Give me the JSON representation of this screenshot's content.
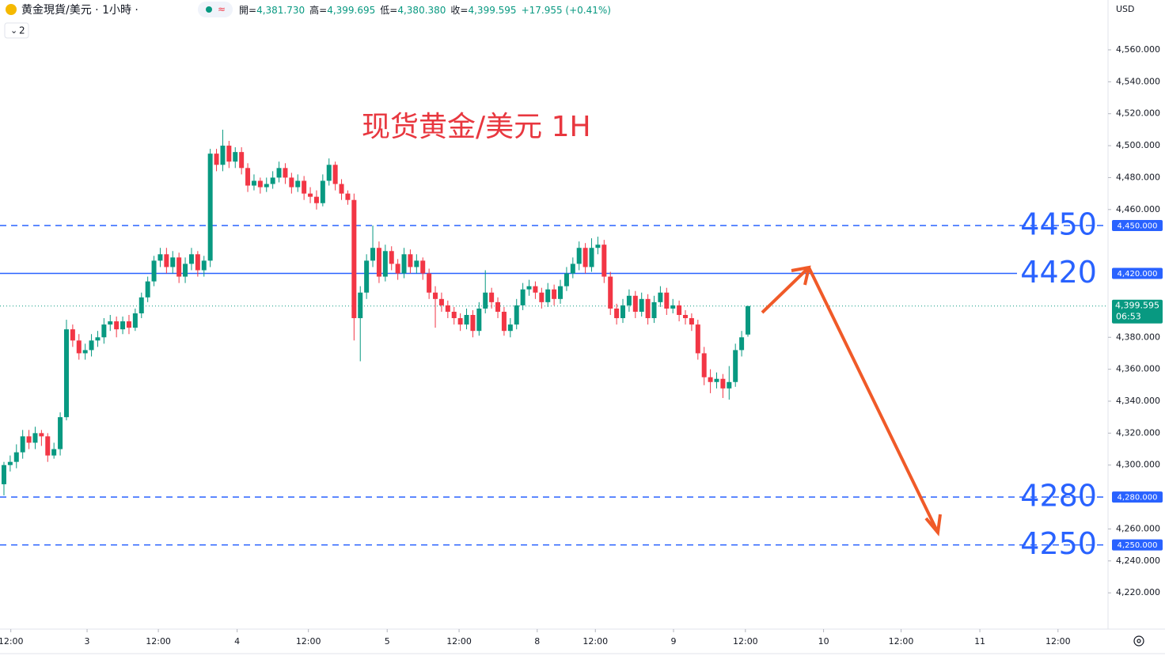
{
  "chart_data": {
    "type": "candlestick",
    "symbol": "黄金現貨/美元 · 1小時 ·",
    "indicator_count": 2,
    "currency": "USD",
    "title": "现货黄金/美元 1H",
    "legend_ohlc": [
      {
        "name": "開=",
        "value": 4381.73,
        "label": "4,381.730"
      },
      {
        "name": "高=",
        "value": 4399.695,
        "label": "4,399.695"
      },
      {
        "name": "低=",
        "value": 4380.38,
        "label": "4,380.380"
      },
      {
        "name": "收=",
        "value": 4399.595,
        "label": "4,399.595"
      }
    ],
    "change": "+17.955 (+0.41%)",
    "up_color": "#089981",
    "down_color": "#f23645",
    "level_color": "#2962ff",
    "ylim": [
      4197.3,
      4591.2
    ],
    "yticks": [
      {
        "value": 4560,
        "label": "4,560.000"
      },
      {
        "value": 4540,
        "label": "4,540.000"
      },
      {
        "value": 4520,
        "label": "4,520.000"
      },
      {
        "value": 4500,
        "label": "4,500.000"
      },
      {
        "value": 4480,
        "label": "4,480.000"
      },
      {
        "value": 4460,
        "label": "4,460.000"
      },
      {
        "value": 4380,
        "label": "4,380.000"
      },
      {
        "value": 4360,
        "label": "4,360.000"
      },
      {
        "value": 4340,
        "label": "4,340.000"
      },
      {
        "value": 4320,
        "label": "4,320.000"
      },
      {
        "value": 4300,
        "label": "4,300.000"
      },
      {
        "value": 4260,
        "label": "4,260.000"
      },
      {
        "value": 4240,
        "label": "4,240.000"
      },
      {
        "value": 4220,
        "label": "4,220.000"
      }
    ],
    "xlim": [
      -0.63,
      176.6
    ],
    "xticks": [
      {
        "value": 1.1,
        "label": "12:00"
      },
      {
        "value": 13.3,
        "label": "3"
      },
      {
        "value": 24.7,
        "label": "12:00"
      },
      {
        "value": 37.3,
        "label": "4"
      },
      {
        "value": 48.7,
        "label": "12:00"
      },
      {
        "value": 61.3,
        "label": "5"
      },
      {
        "value": 72.8,
        "label": "12:00"
      },
      {
        "value": 85.3,
        "label": "8"
      },
      {
        "value": 94.6,
        "label": "12:00"
      },
      {
        "value": 107.1,
        "label": "9"
      },
      {
        "value": 118.6,
        "label": "12:00"
      },
      {
        "value": 131.1,
        "label": "10"
      },
      {
        "value": 143.5,
        "label": "12:00"
      },
      {
        "value": 156.1,
        "label": "11"
      },
      {
        "value": 168.6,
        "label": "12:00"
      }
    ],
    "levels": [
      {
        "value": 4450,
        "badge": "4,450.000",
        "style": "dashed"
      },
      {
        "value": 4420,
        "badge": "4,420.000",
        "style": "solid"
      },
      {
        "value": 4280,
        "badge": "4,280.000",
        "style": "dashed"
      },
      {
        "value": 4250,
        "badge": "4,250.000",
        "style": "dashed"
      }
    ],
    "last_price": {
      "value": 4399.595,
      "label": "4,399.595",
      "countdown": "06:53"
    },
    "candles": [
      [
        4288,
        4302,
        4281,
        4300
      ],
      [
        4300,
        4306,
        4296,
        4302
      ],
      [
        4302,
        4313,
        4298,
        4308
      ],
      [
        4308,
        4322,
        4304,
        4318
      ],
      [
        4318,
        4322,
        4310,
        4314
      ],
      [
        4314,
        4324,
        4310,
        4320
      ],
      [
        4320,
        4322,
        4312,
        4318
      ],
      [
        4318,
        4320,
        4302,
        4306
      ],
      [
        4306,
        4314,
        4304,
        4310
      ],
      [
        4310,
        4333,
        4306,
        4330
      ],
      [
        4330,
        4391,
        4328,
        4385
      ],
      [
        4385,
        4388,
        4374,
        4378
      ],
      [
        4378,
        4382,
        4366,
        4370
      ],
      [
        4370,
        4376,
        4366,
        4372
      ],
      [
        4372,
        4382,
        4368,
        4378
      ],
      [
        4378,
        4384,
        4374,
        4380
      ],
      [
        4380,
        4392,
        4376,
        4388
      ],
      [
        4388,
        4394,
        4384,
        4390
      ],
      [
        4390,
        4393,
        4380,
        4385
      ],
      [
        4385,
        4393,
        4382,
        4390
      ],
      [
        4390,
        4394,
        4382,
        4386
      ],
      [
        4386,
        4398,
        4384,
        4395
      ],
      [
        4395,
        4408,
        4392,
        4405
      ],
      [
        4405,
        4418,
        4402,
        4415
      ],
      [
        4415,
        4431,
        4412,
        4428
      ],
      [
        4428,
        4436,
        4424,
        4432
      ],
      [
        4432,
        4436,
        4420,
        4424
      ],
      [
        4424,
        4434,
        4420,
        4430
      ],
      [
        4430,
        4433,
        4414,
        4418
      ],
      [
        4418,
        4430,
        4414,
        4426
      ],
      [
        4426,
        4436,
        4422,
        4432
      ],
      [
        4432,
        4434,
        4418,
        4422
      ],
      [
        4422,
        4431,
        4418,
        4428
      ],
      [
        4428,
        4498,
        4424,
        4495
      ],
      [
        4495,
        4498,
        4484,
        4488
      ],
      [
        4488,
        4510,
        4484,
        4500
      ],
      [
        4500,
        4503,
        4486,
        4490
      ],
      [
        4490,
        4499,
        4486,
        4496
      ],
      [
        4496,
        4499,
        4482,
        4486
      ],
      [
        4486,
        4489,
        4471,
        4475
      ],
      [
        4475,
        4482,
        4472,
        4478
      ],
      [
        4478,
        4480,
        4470,
        4474
      ],
      [
        4474,
        4480,
        4471,
        4476
      ],
      [
        4476,
        4484,
        4473,
        4480
      ],
      [
        4480,
        4490,
        4477,
        4486
      ],
      [
        4486,
        4489,
        4476,
        4480
      ],
      [
        4480,
        4483,
        4470,
        4474
      ],
      [
        4474,
        4482,
        4471,
        4478
      ],
      [
        4478,
        4481,
        4466,
        4470
      ],
      [
        4470,
        4474,
        4464,
        4468
      ],
      [
        4468,
        4472,
        4460,
        4464
      ],
      [
        4464,
        4482,
        4462,
        4478
      ],
      [
        4478,
        4492,
        4475,
        4488
      ],
      [
        4488,
        4490,
        4472,
        4476
      ],
      [
        4476,
        4479,
        4466,
        4470
      ],
      [
        4470,
        4472,
        4463,
        4466
      ],
      [
        4466,
        4470,
        4378,
        4392
      ],
      [
        4392,
        4412,
        4365,
        4408
      ],
      [
        4408,
        4432,
        4404,
        4428
      ],
      [
        4428,
        4450,
        4424,
        4436
      ],
      [
        4436,
        4440,
        4414,
        4418
      ],
      [
        4418,
        4438,
        4415,
        4434
      ],
      [
        4434,
        4437,
        4422,
        4426
      ],
      [
        4426,
        4429,
        4416,
        4420
      ],
      [
        4420,
        4436,
        4417,
        4432
      ],
      [
        4432,
        4435,
        4420,
        4424
      ],
      [
        4424,
        4432,
        4420,
        4428
      ],
      [
        4428,
        4430,
        4416,
        4420
      ],
      [
        4420,
        4423,
        4404,
        4408
      ],
      [
        4408,
        4412,
        4386,
        4404
      ],
      [
        4404,
        4408,
        4396,
        4400
      ],
      [
        4400,
        4403,
        4392,
        4396
      ],
      [
        4396,
        4399,
        4388,
        4392
      ],
      [
        4392,
        4395,
        4384,
        4388
      ],
      [
        4388,
        4398,
        4385,
        4394
      ],
      [
        4394,
        4397,
        4380,
        4384
      ],
      [
        4384,
        4402,
        4381,
        4398
      ],
      [
        4398,
        4422,
        4395,
        4408
      ],
      [
        4408,
        4411,
        4398,
        4402
      ],
      [
        4402,
        4405,
        4392,
        4396
      ],
      [
        4396,
        4399,
        4381,
        4384
      ],
      [
        4384,
        4392,
        4380,
        4388
      ],
      [
        4388,
        4404,
        4385,
        4400
      ],
      [
        4400,
        4414,
        4397,
        4410
      ],
      [
        4410,
        4416,
        4406,
        4412
      ],
      [
        4412,
        4415,
        4404,
        4408
      ],
      [
        4408,
        4411,
        4398,
        4402
      ],
      [
        4402,
        4414,
        4399,
        4410
      ],
      [
        4410,
        4413,
        4400,
        4404
      ],
      [
        4404,
        4416,
        4401,
        4412
      ],
      [
        4412,
        4424,
        4409,
        4420
      ],
      [
        4420,
        4430,
        4417,
        4426
      ],
      [
        4426,
        4440,
        4422,
        4436
      ],
      [
        4436,
        4439,
        4420,
        4424
      ],
      [
        4424,
        4442,
        4421,
        4436
      ],
      [
        4436,
        4443,
        4432,
        4438
      ],
      [
        4438,
        4441,
        4414,
        4418
      ],
      [
        4418,
        4421,
        4394,
        4398
      ],
      [
        4398,
        4401,
        4388,
        4392
      ],
      [
        4392,
        4404,
        4389,
        4400
      ],
      [
        4400,
        4410,
        4396,
        4406
      ],
      [
        4406,
        4409,
        4392,
        4396
      ],
      [
        4396,
        4408,
        4393,
        4404
      ],
      [
        4404,
        4407,
        4388,
        4392
      ],
      [
        4392,
        4406,
        4389,
        4402
      ],
      [
        4402,
        4412,
        4399,
        4408
      ],
      [
        4408,
        4411,
        4394,
        4398
      ],
      [
        4398,
        4404,
        4395,
        4400
      ],
      [
        4400,
        4403,
        4390,
        4394
      ],
      [
        4394,
        4397,
        4388,
        4392
      ],
      [
        4392,
        4395,
        4384,
        4388
      ],
      [
        4388,
        4391,
        4366,
        4370
      ],
      [
        4370,
        4374,
        4350,
        4355
      ],
      [
        4355,
        4360,
        4345,
        4352
      ],
      [
        4352,
        4358,
        4348,
        4354
      ],
      [
        4354,
        4357,
        4342,
        4348
      ],
      [
        4348,
        4362,
        4341,
        4352
      ],
      [
        4352,
        4376,
        4349,
        4372
      ],
      [
        4372,
        4384,
        4368,
        4380
      ],
      [
        4381.73,
        4399.695,
        4380.38,
        4399.595
      ]
    ]
  }
}
